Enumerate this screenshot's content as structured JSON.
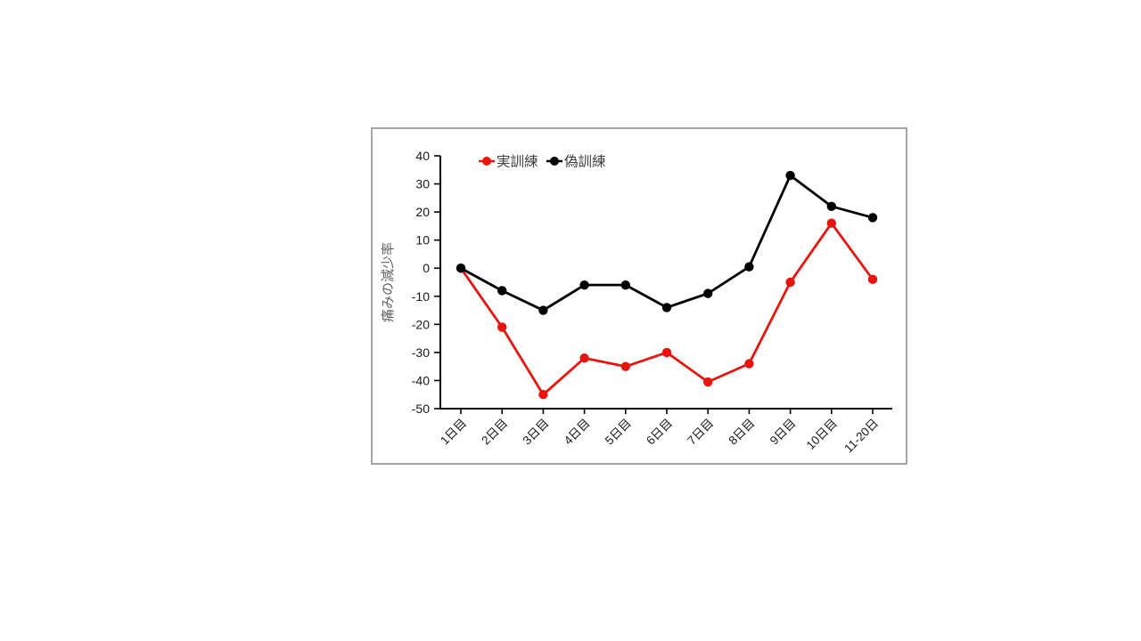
{
  "page": {
    "background_color": "#ffffff"
  },
  "chart_panel": {
    "border_color": "#a6a6a6",
    "background_color": "#ffffff"
  },
  "chart_data": {
    "type": "line",
    "title": "",
    "xlabel": "",
    "ylabel": "痛みの減少率",
    "categories": [
      "1日目",
      "2日目",
      "3日目",
      "4日目",
      "5日目",
      "6日目",
      "7日目",
      "8日目",
      "9日目",
      "10日目",
      "11-20日"
    ],
    "series": [
      {
        "name": "実訓練",
        "color": "#e8150e",
        "values": [
          0,
          -21,
          -45,
          -32,
          -35,
          -30,
          -40.5,
          -34,
          -5,
          16,
          -4
        ]
      },
      {
        "name": "偽訓練",
        "color": "#000000",
        "values": [
          0,
          -8,
          -15,
          -6,
          -6,
          -14,
          -9,
          0.5,
          33,
          22,
          18
        ]
      }
    ],
    "ylim": [
      -50,
      40
    ],
    "ytick_step": 10,
    "yticks": [
      40,
      30,
      20,
      10,
      0,
      -10,
      -20,
      -30,
      -40,
      -50
    ],
    "grid": false,
    "legend_position": "top-left-inside",
    "axis_color": "#000000",
    "tick_label_color": "#1a1a1a",
    "ylabel_color": "#636363",
    "legend_text_color": "#3d3d3d",
    "x_labels_rotation_deg": -45
  }
}
